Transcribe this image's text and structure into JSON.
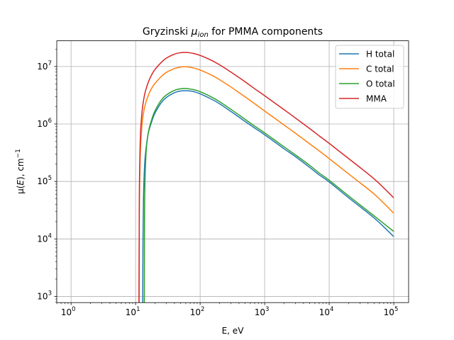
{
  "chart_data": {
    "type": "line",
    "title": "Gryzinski μ_ion for PMMA components",
    "title_parts": {
      "prefix": "Gryzinski ",
      "mu": "μ",
      "sub": "ion",
      "suffix": " for PMMA components"
    },
    "xlabel": "E, eV",
    "ylabel": "μ(E), cm⁻¹",
    "ylabel_parts": {
      "mu": "μ(",
      "e": "E",
      "close": "), cm",
      "sup": "−1"
    },
    "x_scale": "log",
    "y_scale": "log",
    "xlim": [
      0.6,
      170000
    ],
    "ylim": [
      780,
      28000000
    ],
    "x_ticks": [
      {
        "value": 1,
        "base": "10",
        "exp": "0"
      },
      {
        "value": 10,
        "base": "10",
        "exp": "1"
      },
      {
        "value": 100,
        "base": "10",
        "exp": "2"
      },
      {
        "value": 1000,
        "base": "10",
        "exp": "3"
      },
      {
        "value": 10000,
        "base": "10",
        "exp": "4"
      },
      {
        "value": 100000,
        "base": "10",
        "exp": "5"
      }
    ],
    "y_ticks": [
      {
        "value": 1000,
        "base": "10",
        "exp": "3"
      },
      {
        "value": 10000,
        "base": "10",
        "exp": "4"
      },
      {
        "value": 100000,
        "base": "10",
        "exp": "5"
      },
      {
        "value": 1000000,
        "base": "10",
        "exp": "6"
      },
      {
        "value": 10000000,
        "base": "10",
        "exp": "7"
      }
    ],
    "grid": true,
    "legend_position": "top-right",
    "series": [
      {
        "name": "H total",
        "color": "#1f77b4",
        "x": [
          12.9,
          13.0,
          13.2,
          13.5,
          14,
          15,
          16,
          18,
          20,
          25,
          30,
          40,
          50,
          60,
          70,
          80,
          100,
          150,
          200,
          300,
          500,
          700,
          1000,
          2000,
          3000,
          5000,
          7000,
          10000,
          20000,
          50000,
          100000
        ],
        "y": [
          780,
          8000,
          40000,
          110000,
          250000,
          500000,
          750000,
          1150000,
          1550000,
          2350000,
          2900000,
          3500000,
          3750000,
          3800000,
          3750000,
          3650000,
          3350000,
          2700000,
          2250000,
          1650000,
          1100000,
          850000,
          650000,
          370000,
          270000,
          175000,
          130000,
          98000,
          52000,
          23000,
          11000
        ]
      },
      {
        "name": "C total",
        "color": "#ff7f0e",
        "x": [
          11.3,
          11.4,
          11.5,
          11.7,
          12,
          12.5,
          13,
          14,
          16,
          18,
          20,
          25,
          30,
          40,
          50,
          60,
          70,
          80,
          100,
          150,
          200,
          300,
          500,
          700,
          1000,
          2000,
          3000,
          5000,
          7000,
          10000,
          20000,
          50000,
          100000
        ],
        "y": [
          780,
          20000,
          70000,
          200000,
          450000,
          900000,
          1350000,
          2100000,
          3300000,
          4300000,
          5100000,
          6700000,
          7900000,
          9200000,
          9800000,
          9900000,
          9700000,
          9400000,
          8700000,
          7100000,
          5900000,
          4400000,
          2950000,
          2250000,
          1680000,
          960000,
          690000,
          450000,
          340000,
          250000,
          135000,
          60000,
          28000
        ]
      },
      {
        "name": "O total",
        "color": "#2ca02c",
        "x": [
          13.65,
          13.7,
          13.8,
          14,
          14.5,
          15,
          16,
          18,
          20,
          25,
          30,
          40,
          50,
          60,
          70,
          80,
          100,
          150,
          200,
          300,
          500,
          700,
          1000,
          2000,
          3000,
          5000,
          7000,
          10000,
          20000,
          50000,
          100000
        ],
        "y": [
          780,
          10000,
          40000,
          110000,
          300000,
          480000,
          780000,
          1250000,
          1700000,
          2600000,
          3200000,
          3850000,
          4100000,
          4150000,
          4050000,
          3950000,
          3650000,
          2950000,
          2450000,
          1800000,
          1200000,
          920000,
          700000,
          400000,
          290000,
          190000,
          140000,
          105000,
          56000,
          25000,
          13500
        ]
      },
      {
        "name": "MMA",
        "color": "#d62728",
        "x": [
          11.3,
          11.4,
          11.5,
          11.7,
          12,
          12.5,
          13,
          14,
          16,
          18,
          20,
          25,
          30,
          40,
          50,
          60,
          70,
          80,
          100,
          150,
          200,
          300,
          500,
          700,
          1000,
          2000,
          3000,
          5000,
          7000,
          10000,
          20000,
          50000,
          100000
        ],
        "y": [
          780,
          30000,
          120000,
          350000,
          800000,
          1500000,
          2200000,
          3500000,
          5600000,
          7400000,
          8900000,
          11800000,
          14000000,
          16400000,
          17400000,
          17600000,
          17300000,
          16800000,
          15600000,
          12800000,
          10700000,
          8000000,
          5400000,
          4100000,
          3100000,
          1770000,
          1270000,
          830000,
          620000,
          460000,
          250000,
          110000,
          52000
        ]
      }
    ]
  }
}
